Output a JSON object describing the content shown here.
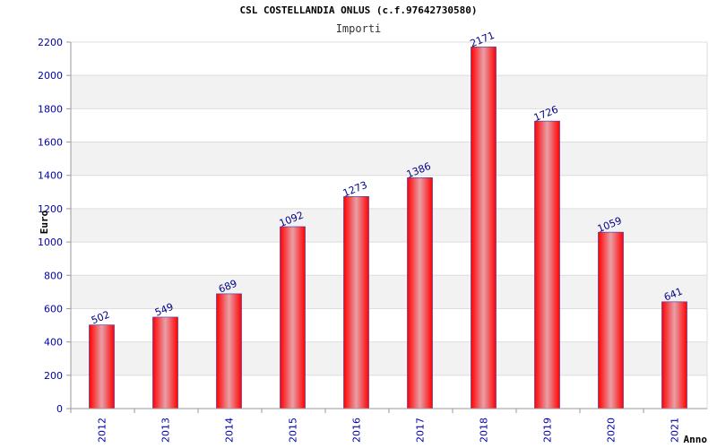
{
  "chart_data": {
    "type": "bar",
    "title": "CSL COSTELLANDIA ONLUS (c.f.97642730580)",
    "subtitle": "Importi",
    "xlabel": "Anno",
    "ylabel": "Euro",
    "categories": [
      "2012",
      "2013",
      "2014",
      "2015",
      "2016",
      "2017",
      "2018",
      "2019",
      "2020",
      "2021"
    ],
    "values": [
      502,
      549,
      689,
      1092,
      1273,
      1386,
      2171,
      1726,
      1059,
      641
    ],
    "data_labels": [
      "502",
      "549",
      "689",
      "1092",
      "1273",
      "1386",
      "2171",
      "1726",
      "1059",
      "641"
    ],
    "ylim": [
      0,
      2200
    ],
    "yticks": [
      0,
      200,
      400,
      600,
      800,
      1000,
      1200,
      1400,
      1600,
      1800,
      2000,
      2200
    ],
    "ytick_labels": [
      "0",
      "200",
      "400",
      "600",
      "800",
      "1000",
      "1200",
      "1400",
      "1600",
      "1800",
      "2000",
      "2200"
    ],
    "grid": true,
    "colors": {
      "bar_edge": "#ff0000",
      "bar_center": "#e8a0a8",
      "bar_outline": "#3333aa",
      "band": "#f2f2f2",
      "grid": "#dddddd",
      "axis": "#999999",
      "tick_label": "#0000aa",
      "data_label": "#000088"
    }
  }
}
